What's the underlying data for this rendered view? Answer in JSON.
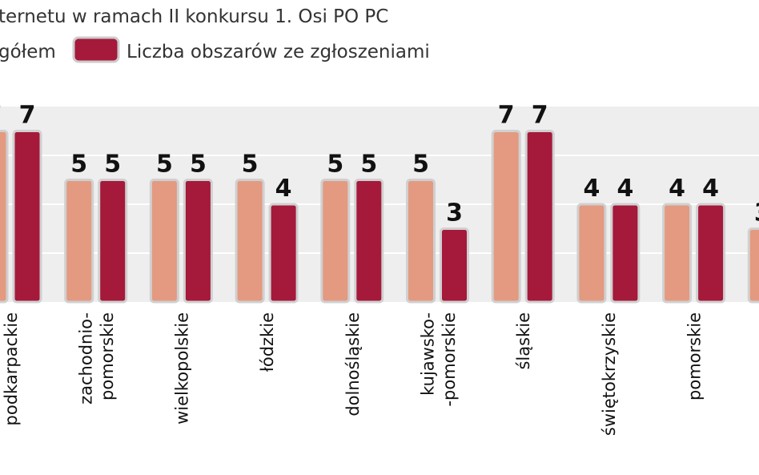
{
  "chart_data": {
    "type": "bar",
    "title": "ternetu w ramach II konkursu 1. Osi PO PC",
    "categories": [
      "podkarpackie",
      "zachodnio-\npomorskie",
      "wielkopolskie",
      "łódzkie",
      "dolnośląskie",
      "kujawsko-\n-pomorskie",
      "śląskie",
      "świętokrzyskie",
      "pomorskie",
      null
    ],
    "series": [
      {
        "name": "gółem",
        "color": "#e39a80",
        "values": [
          7,
          5,
          5,
          5,
          5,
          5,
          7,
          4,
          4,
          3
        ]
      },
      {
        "name": "Liczba obszarów ze zgłoszeniami",
        "color": "#a5193b",
        "values": [
          7,
          5,
          5,
          4,
          5,
          3,
          7,
          4,
          4,
          null
        ]
      }
    ],
    "ylim": [
      0,
      8
    ],
    "yticks": [
      2,
      4,
      6
    ],
    "grid": true
  }
}
